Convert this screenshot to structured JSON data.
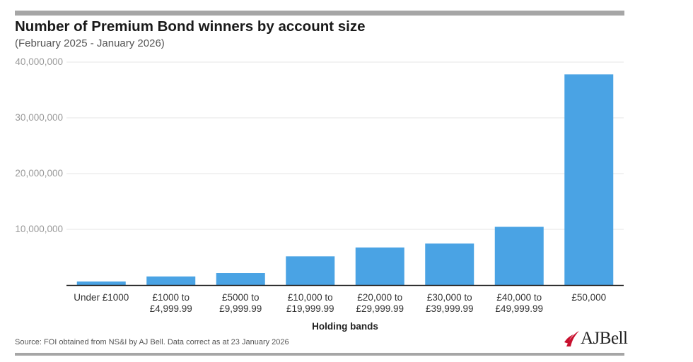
{
  "header": {
    "title": "Number of Premium Bond winners by account size",
    "subtitle": "(February 2025 - January 2026)"
  },
  "footer": {
    "source": "Source: FOI obtained from NS&I by AJ Bell. Data correct as at 23 January 2026",
    "logo_text": "AJBell"
  },
  "colors": {
    "bar": "#4aa3e4",
    "grid": "#e5e5e5",
    "axis": "#222222",
    "tick_label": "#9a9a9a",
    "logo_accent": "#c8102e"
  },
  "chart_data": {
    "type": "bar",
    "title": "Number of Premium Bond winners by account size",
    "subtitle": "(February 2025 - January 2026)",
    "xlabel": "Holding bands",
    "ylabel": "",
    "ylim": [
      0,
      40000000
    ],
    "yticks": [
      10000000,
      20000000,
      30000000,
      40000000
    ],
    "ytick_labels": [
      "10,000,000",
      "20,000,000",
      "30,000,000",
      "40,000,000"
    ],
    "grid": true,
    "categories": [
      [
        "Under £1000"
      ],
      [
        "£1000 to",
        "£4,999.99"
      ],
      [
        "£5000 to",
        "£9,999.99"
      ],
      [
        "£10,000 to",
        "£19,999.99"
      ],
      [
        "£20,000 to",
        "£29,999.99"
      ],
      [
        "£30,000 to",
        "£39,999.99"
      ],
      [
        "£40,000 to",
        "£49,999.99"
      ],
      [
        "£50,000"
      ]
    ],
    "values": [
      650000,
      1550000,
      2150000,
      5150000,
      6750000,
      7450000,
      10450000,
      37800000
    ]
  }
}
